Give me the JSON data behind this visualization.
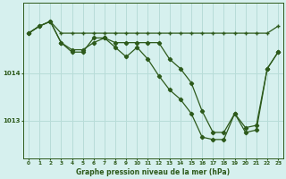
{
  "title": "Graphe pression niveau de la mer (hPa)",
  "bg_color": "#d6f0ee",
  "grid_color": "#b8dcd8",
  "line_color": "#2d5a1b",
  "xlim": [
    -0.5,
    23.5
  ],
  "ylim": [
    1012.2,
    1015.5
  ],
  "yticks": [
    1013,
    1014
  ],
  "xticks": [
    0,
    1,
    2,
    3,
    4,
    5,
    6,
    7,
    8,
    9,
    10,
    11,
    12,
    13,
    14,
    15,
    16,
    17,
    18,
    19,
    20,
    21,
    22,
    23
  ],
  "series1_x": [
    0,
    1,
    2,
    3,
    4,
    5,
    6,
    7,
    8,
    9,
    10,
    11,
    12,
    13,
    14,
    15,
    16,
    17,
    18,
    19,
    20,
    21,
    22,
    23
  ],
  "series1_y": [
    1014.85,
    1015.0,
    1015.1,
    1014.85,
    1014.85,
    1014.85,
    1014.85,
    1014.85,
    1014.85,
    1014.85,
    1014.85,
    1014.85,
    1014.85,
    1014.85,
    1014.85,
    1014.85,
    1014.85,
    1014.85,
    1014.85,
    1014.85,
    1014.85,
    1014.85,
    1014.85,
    1015.0
  ],
  "series2_x": [
    0,
    1,
    2,
    3,
    4,
    5,
    6,
    7,
    8,
    9,
    10,
    11,
    12,
    13,
    14,
    15,
    16,
    17,
    18,
    19,
    20,
    21,
    22,
    23
  ],
  "series2_y": [
    1014.85,
    1015.0,
    1015.1,
    1014.65,
    1014.5,
    1014.5,
    1014.65,
    1014.75,
    1014.65,
    1014.65,
    1014.65,
    1014.65,
    1014.65,
    1014.3,
    1014.1,
    1013.8,
    1013.2,
    1012.75,
    1012.75,
    1013.15,
    1012.85,
    1012.9,
    1014.1,
    1014.45
  ],
  "series3_x": [
    0,
    1,
    2,
    3,
    4,
    5,
    6,
    7,
    8,
    9,
    10,
    11,
    12,
    13,
    14,
    15,
    16,
    17,
    18,
    19,
    20,
    21,
    22,
    23
  ],
  "series3_y": [
    1014.85,
    1015.0,
    1015.1,
    1014.65,
    1014.45,
    1014.45,
    1014.75,
    1014.75,
    1014.55,
    1014.35,
    1014.55,
    1014.3,
    1013.95,
    1013.65,
    1013.45,
    1013.15,
    1012.65,
    1012.6,
    1012.6,
    1013.15,
    1012.75,
    1012.8,
    1014.1,
    1014.45
  ]
}
